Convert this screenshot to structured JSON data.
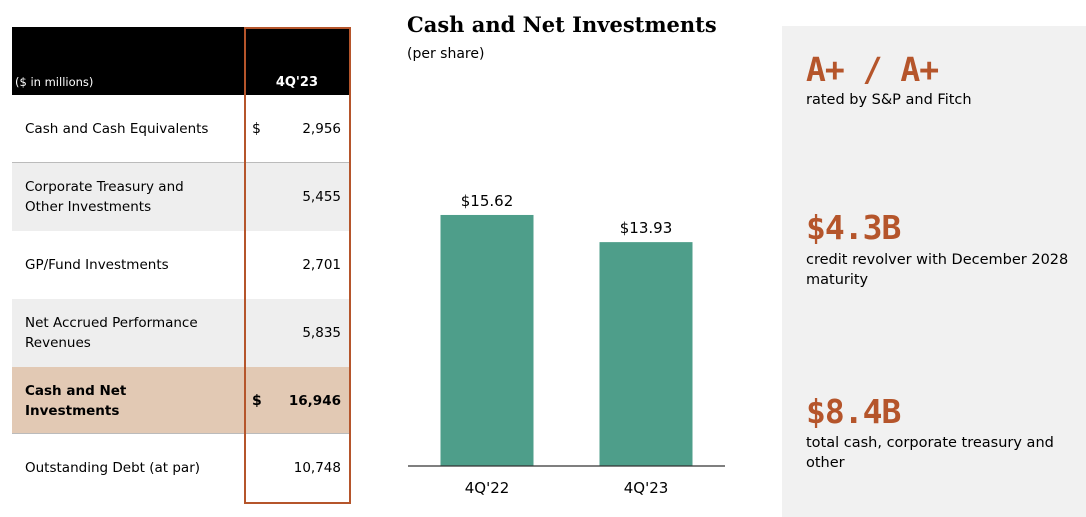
{
  "table": {
    "unit_label": "($ in millions)",
    "column_header": "4Q'23",
    "rows": [
      {
        "label": "Cash and Cash Equivalents",
        "dollar": "$",
        "value": "2,956"
      },
      {
        "label": "Corporate Treasury and Other Investments",
        "dollar": "",
        "value": "5,455"
      },
      {
        "label": "GP/Fund Investments",
        "dollar": "",
        "value": "2,701"
      },
      {
        "label": "Net Accrued Performance Revenues",
        "dollar": "",
        "value": "5,835"
      },
      {
        "label": "Cash and Net Investments",
        "dollar": "$",
        "value": "16,946"
      },
      {
        "label": "Outstanding Debt (at par)",
        "dollar": "",
        "value": "10,748"
      }
    ]
  },
  "chart_data": {
    "type": "bar",
    "title": "Cash and Net Investments",
    "subtitle": "(per share)",
    "categories": [
      "4Q'22",
      "4Q'23"
    ],
    "values": [
      15.62,
      13.93
    ],
    "data_labels": [
      "$15.62",
      "$13.93"
    ],
    "ylim": [
      0,
      16.8
    ],
    "grid": false,
    "bar_color": "#4e9e8a"
  },
  "panel": {
    "stats": [
      {
        "big": "A+ / A+",
        "text": "rated by S&P and Fitch"
      },
      {
        "big": "$4.3B",
        "text": "credit revolver with December 2028 maturity"
      },
      {
        "big": "$8.4B",
        "text": "total cash, corporate treasury and other"
      }
    ]
  },
  "colors": {
    "accent": "#b5552b",
    "highlight_row": "#e2c9b4",
    "alt_row": "#eeeeee"
  }
}
